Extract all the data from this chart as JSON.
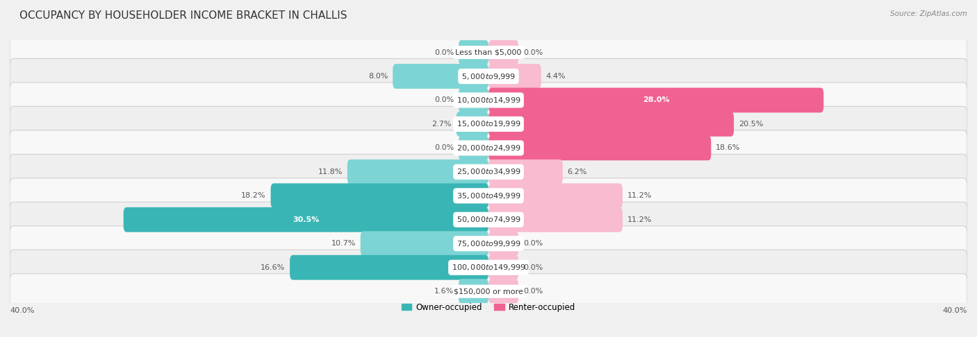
{
  "title": "OCCUPANCY BY HOUSEHOLDER INCOME BRACKET IN CHALLIS",
  "source": "Source: ZipAtlas.com",
  "categories": [
    "Less than $5,000",
    "$5,000 to $9,999",
    "$10,000 to $14,999",
    "$15,000 to $19,999",
    "$20,000 to $24,999",
    "$25,000 to $34,999",
    "$35,000 to $49,999",
    "$50,000 to $74,999",
    "$75,000 to $99,999",
    "$100,000 to $149,999",
    "$150,000 or more"
  ],
  "owner_values": [
    0.0,
    8.0,
    0.0,
    2.7,
    0.0,
    11.8,
    18.2,
    30.5,
    10.7,
    16.6,
    1.6
  ],
  "renter_values": [
    0.0,
    4.4,
    28.0,
    20.5,
    18.6,
    6.2,
    11.2,
    11.2,
    0.0,
    0.0,
    0.0
  ],
  "owner_color_dark": "#3ab5b5",
  "owner_color_light": "#7dd4d4",
  "renter_color_dark": "#f06292",
  "renter_color_light": "#f8bbd0",
  "axis_limit": 40.0,
  "min_bar_width": 2.5,
  "bg_color": "#f0f0f0",
  "row_bg_odd": "#f7f7f7",
  "row_bg_even": "#ebebeb",
  "title_fontsize": 11,
  "label_fontsize": 8,
  "category_fontsize": 8,
  "legend_fontsize": 8.5,
  "source_fontsize": 7.5
}
